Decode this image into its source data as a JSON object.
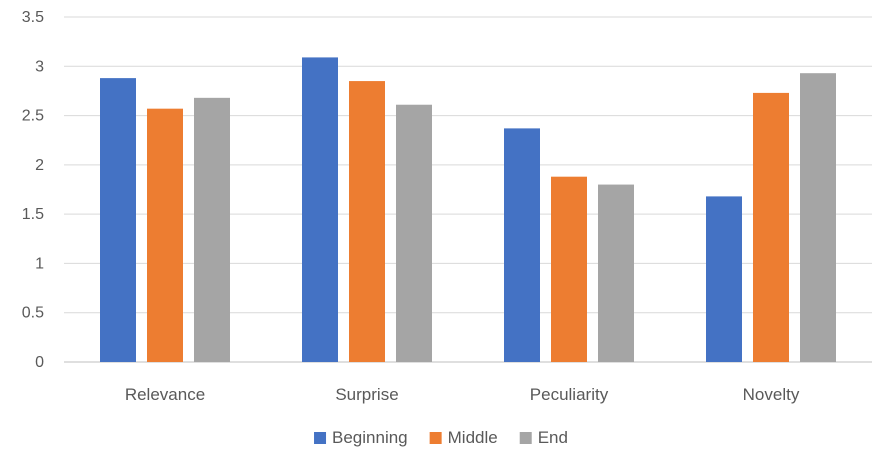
{
  "chart_data": {
    "type": "bar",
    "categories": [
      "Relevance",
      "Surprise",
      "Peculiarity",
      "Novelty"
    ],
    "series": [
      {
        "name": "Beginning",
        "color": "#4472C4",
        "values": [
          2.88,
          3.09,
          2.37,
          1.68
        ]
      },
      {
        "name": "Middle",
        "color": "#ED7D31",
        "values": [
          2.57,
          2.85,
          1.88,
          2.73
        ]
      },
      {
        "name": "End",
        "color": "#A5A5A5",
        "values": [
          2.68,
          2.61,
          1.8,
          2.93
        ]
      }
    ],
    "y_ticks": [
      "0",
      "0.5",
      "1",
      "1.5",
      "2",
      "2.5",
      "3",
      "3.5"
    ],
    "ylim": [
      0,
      3.5
    ],
    "grid": true,
    "legend_position": "bottom"
  }
}
